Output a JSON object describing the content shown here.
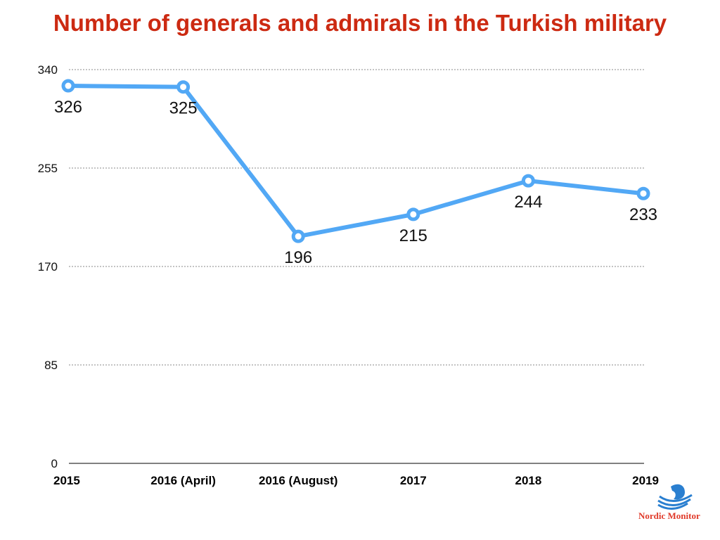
{
  "chart_data": {
    "type": "line",
    "title": "Number of generals and admirals in the Turkish military",
    "categories": [
      "2015",
      "2016 (April)",
      "2016 (August)",
      "2017",
      "2018",
      "2019"
    ],
    "values": [
      326,
      325,
      196,
      215,
      244,
      233
    ],
    "data_labels": [
      "326",
      "325",
      "196",
      "215",
      "244",
      "233"
    ],
    "ylim": [
      0,
      340
    ],
    "yticks": [
      0,
      85,
      170,
      255,
      340
    ],
    "ytick_labels": [
      "0",
      "85",
      "170",
      "255",
      "340"
    ],
    "xlabel": "",
    "ylabel": "",
    "grid": "horizontal dotted",
    "line_color": "#52a8f5",
    "title_color": "#cc2a12"
  },
  "logo": {
    "text": "Nordic Monitor"
  }
}
